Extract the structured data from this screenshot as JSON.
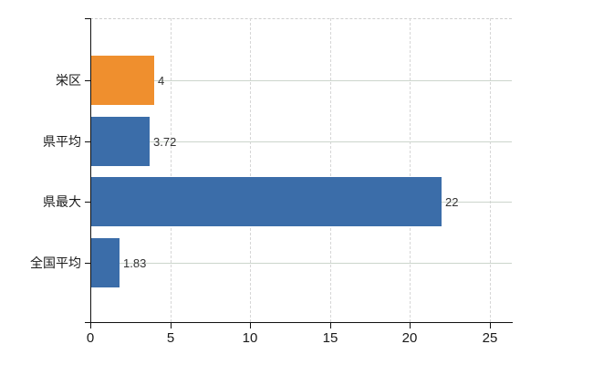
{
  "chart_data": {
    "type": "bar",
    "orientation": "horizontal",
    "title": "",
    "categories": [
      "栄区",
      "県平均",
      "県最大",
      "全国平均"
    ],
    "values": [
      4,
      3.72,
      22,
      1.83
    ],
    "value_labels": [
      "4",
      "3.72",
      "22",
      "1.83"
    ],
    "bar_colors": [
      "#EF8F2E",
      "#3B6DA9",
      "#3B6DA9",
      "#3B6DA9"
    ],
    "x_tick_labels": [
      "0",
      "5",
      "10",
      "15",
      "20",
      "25"
    ],
    "x_tick_values": [
      0,
      5,
      10,
      15,
      20,
      25
    ],
    "xlim": [
      0,
      26.4
    ],
    "grid": "on",
    "legend": "none"
  },
  "colors": {
    "bar_blue": "#3B6DA9",
    "bar_orange": "#EF8F2E",
    "axis_line": "#111111",
    "grid_vertical_dashed": "#d6d6d6",
    "grid_horizontal_solid": "#ccd5cc",
    "top_border_dashed": "#cfcfcf",
    "label_text": "#1a1a1a",
    "value_label_text": "#333333",
    "background": "#ffffff"
  }
}
